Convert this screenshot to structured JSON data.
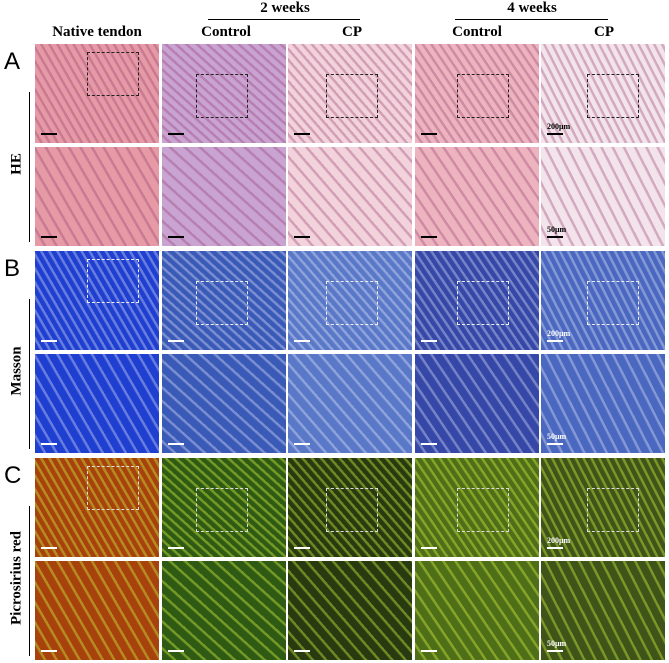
{
  "header": {
    "native": "Native tendon",
    "groups": [
      {
        "label": "2 weeks",
        "columns": [
          "Control",
          "CP"
        ]
      },
      {
        "label": "4 weeks",
        "columns": [
          "Control",
          "CP"
        ]
      }
    ]
  },
  "rows": [
    {
      "letter": "A",
      "stain": "HE",
      "scale_low": "200μm",
      "scale_high": "50μm"
    },
    {
      "letter": "B",
      "stain": "Masson",
      "scale_low": "200μm",
      "scale_high": "50μm"
    },
    {
      "letter": "C",
      "stain": "Picrosirius red",
      "scale_low": "200μm",
      "scale_high": "50μm"
    }
  ]
}
